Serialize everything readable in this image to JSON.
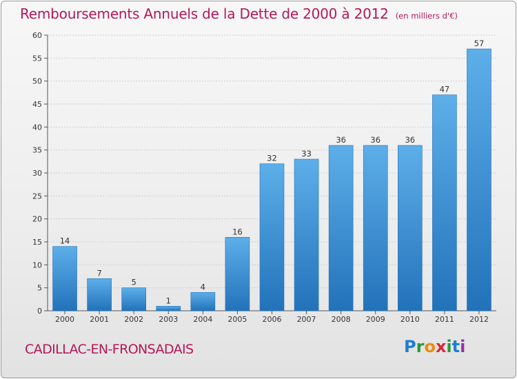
{
  "title": "Remboursements Annuels de la Dette de 2000 à 2012",
  "unit": "(en milliers d'€)",
  "location": "CADILLAC-EN-FRONSADAIS",
  "brand": {
    "letters": [
      "P",
      "r",
      "o",
      "x",
      "i",
      "t",
      "i"
    ],
    "colors": [
      "#1e7fd0",
      "#2a9a3c",
      "#ef8a11",
      "#d8293a",
      "#2a9a3c",
      "#1e7fd0",
      "#9a2fa0"
    ]
  },
  "colors": {
    "title": "#b3185a",
    "bar": "#3e97dc",
    "bar_light": "#5dafe9",
    "bar_dark": "#2272ba"
  },
  "chart_data": {
    "type": "bar",
    "categories": [
      "2000",
      "2001",
      "2002",
      "2003",
      "2004",
      "2005",
      "2006",
      "2007",
      "2008",
      "2009",
      "2010",
      "2011",
      "2012"
    ],
    "values": [
      14,
      7,
      5,
      1,
      4,
      16,
      32,
      33,
      36,
      36,
      36,
      47,
      57
    ],
    "yticks": [
      0,
      5,
      10,
      15,
      20,
      25,
      30,
      35,
      40,
      45,
      50,
      55,
      60
    ],
    "ylim": [
      0,
      60
    ],
    "grid": true,
    "legend": false
  }
}
